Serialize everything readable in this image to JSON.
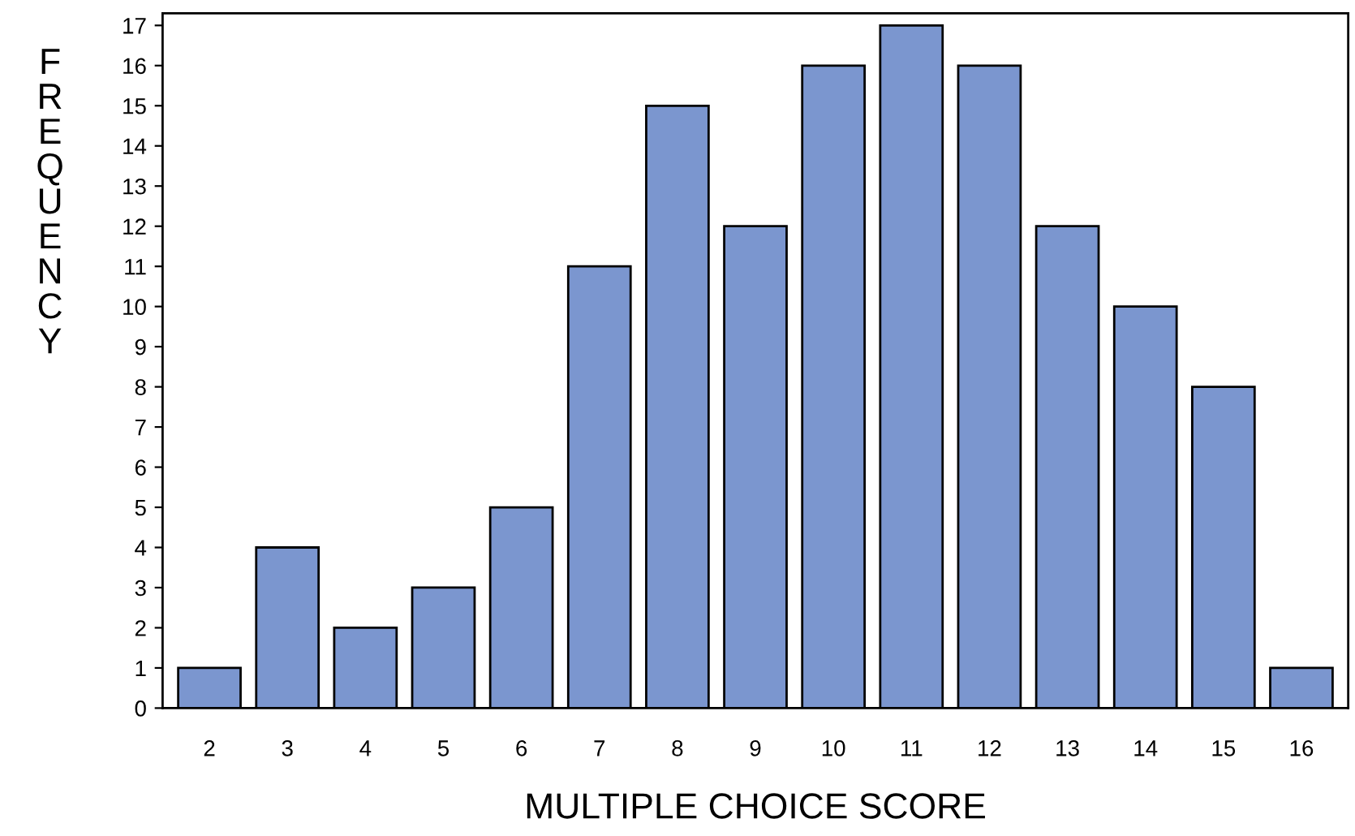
{
  "chart_data": {
    "type": "bar",
    "xlabel": "MULTIPLE CHOICE SCORE",
    "ylabel": "FREQUENCY",
    "categories": [
      "2",
      "3",
      "4",
      "5",
      "6",
      "7",
      "8",
      "9",
      "10",
      "11",
      "12",
      "13",
      "14",
      "15",
      "16"
    ],
    "values": [
      1,
      4,
      2,
      3,
      5,
      11,
      15,
      12,
      16,
      17,
      16,
      12,
      10,
      8,
      1
    ],
    "color": "#7b96cf",
    "ylim": [
      0,
      17.3
    ],
    "yticks": [
      0,
      1,
      2,
      3,
      4,
      5,
      6,
      7,
      8,
      9,
      10,
      11,
      12,
      13,
      14,
      15,
      16,
      17
    ],
    "grid": false,
    "legend": false
  }
}
